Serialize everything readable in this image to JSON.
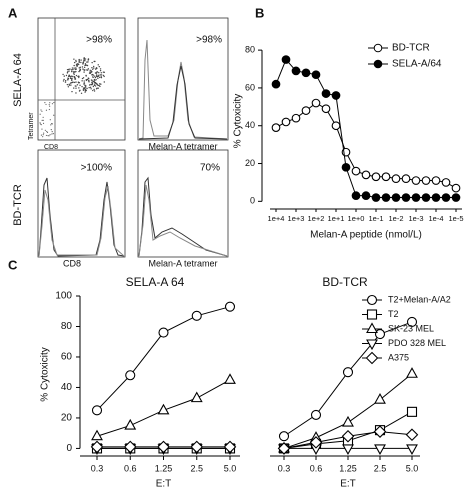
{
  "panel_a": {
    "label": "A",
    "rows": [
      {
        "name": "SELA-A 64",
        "plots": [
          {
            "gate": ">98%",
            "xlabel": "CD8",
            "ylabel": "Tetramer"
          },
          {
            "gate": ">98%",
            "xlabel": "Melan-A tetramer"
          }
        ]
      },
      {
        "name": "BD-TCR",
        "plots": [
          {
            "gate": ">100%",
            "xlabel": "CD8"
          },
          {
            "gate": "70%",
            "xlabel": "Melan-A tetramer"
          }
        ]
      }
    ]
  },
  "chart_data": [
    {
      "type": "line",
      "label": "B",
      "ylabel": "% Cytoxicity",
      "xlabel": "Melan-A peptide (nmol/L)",
      "x": [
        4,
        3.5,
        3,
        2.5,
        2,
        1.5,
        1,
        0.5,
        0,
        -0.5,
        -1,
        -1.5,
        -2,
        -2.5,
        -3,
        -3.5,
        -4,
        -4.5,
        -5
      ],
      "xlim": [
        4.3,
        -5.3
      ],
      "xticks": [
        {
          "value": 4,
          "label": "1e+4"
        },
        {
          "value": 3,
          "label": "1e+3"
        },
        {
          "value": 2,
          "label": "1e+2"
        },
        {
          "value": 1,
          "label": "1e+1"
        },
        {
          "value": 0,
          "label": "1e+0"
        },
        {
          "value": -1,
          "label": "1e-1"
        },
        {
          "value": -2,
          "label": "1e-2"
        },
        {
          "value": -3,
          "label": "1e-3"
        },
        {
          "value": -4,
          "label": "1e-4"
        },
        {
          "value": -5,
          "label": "1e-5"
        }
      ],
      "ylim": [
        -3,
        88
      ],
      "yticks": [
        0,
        20,
        40,
        60,
        80
      ],
      "legend": "upper right",
      "series": [
        {
          "name": "BD-TCR",
          "color": "#000000",
          "fill": "#ffffff",
          "values": [
            39,
            42,
            44,
            48,
            52,
            49,
            40,
            26,
            16,
            14,
            13,
            13,
            12,
            12,
            11,
            11,
            11,
            10,
            7
          ]
        },
        {
          "name": "SELA-A/64",
          "color": "#000000",
          "fill": "#000000",
          "values": [
            62,
            75,
            69,
            68,
            67,
            57,
            56,
            18,
            3,
            3,
            2,
            2,
            2,
            2,
            2,
            2,
            2,
            2,
            2
          ]
        }
      ]
    },
    {
      "type": "line",
      "label": "C",
      "ylabel": "% Cytoxicity",
      "xlabel": "E:T",
      "categories": [
        "0.3",
        "0.6",
        "1.25",
        "2.5",
        "5.0"
      ],
      "ylim": [
        -3,
        100
      ],
      "yticks": [
        0,
        20,
        40,
        60,
        80,
        100
      ],
      "color": "#000000",
      "series": [
        {
          "name": "T2+Melan-A/A2",
          "marker": "circle"
        },
        {
          "name": "T2",
          "marker": "square"
        },
        {
          "name": "SK-23 MEL",
          "marker": "triangle-up"
        },
        {
          "name": "PDO 328 MEL",
          "marker": "triangle-down"
        },
        {
          "name": "A375",
          "marker": "diamond"
        }
      ],
      "panels": [
        {
          "title": "SELA-A 64",
          "values": [
            [
              25,
              48,
              76,
              87,
              93
            ],
            [
              0,
              0,
              0,
              0,
              0
            ],
            [
              8,
              15,
              25,
              33,
              45
            ],
            [
              0,
              0,
              0,
              0,
              0
            ],
            [
              1,
              1,
              1,
              1,
              1
            ]
          ]
        },
        {
          "title": "BD-TCR",
          "values": [
            [
              8,
              22,
              50,
              75,
              83
            ],
            [
              0,
              3,
              5,
              12,
              24
            ],
            [
              0,
              7,
              17,
              32,
              49
            ],
            [
              0,
              0,
              0,
              0,
              0
            ],
            [
              0,
              4,
              8,
              11,
              9
            ]
          ]
        }
      ]
    }
  ]
}
